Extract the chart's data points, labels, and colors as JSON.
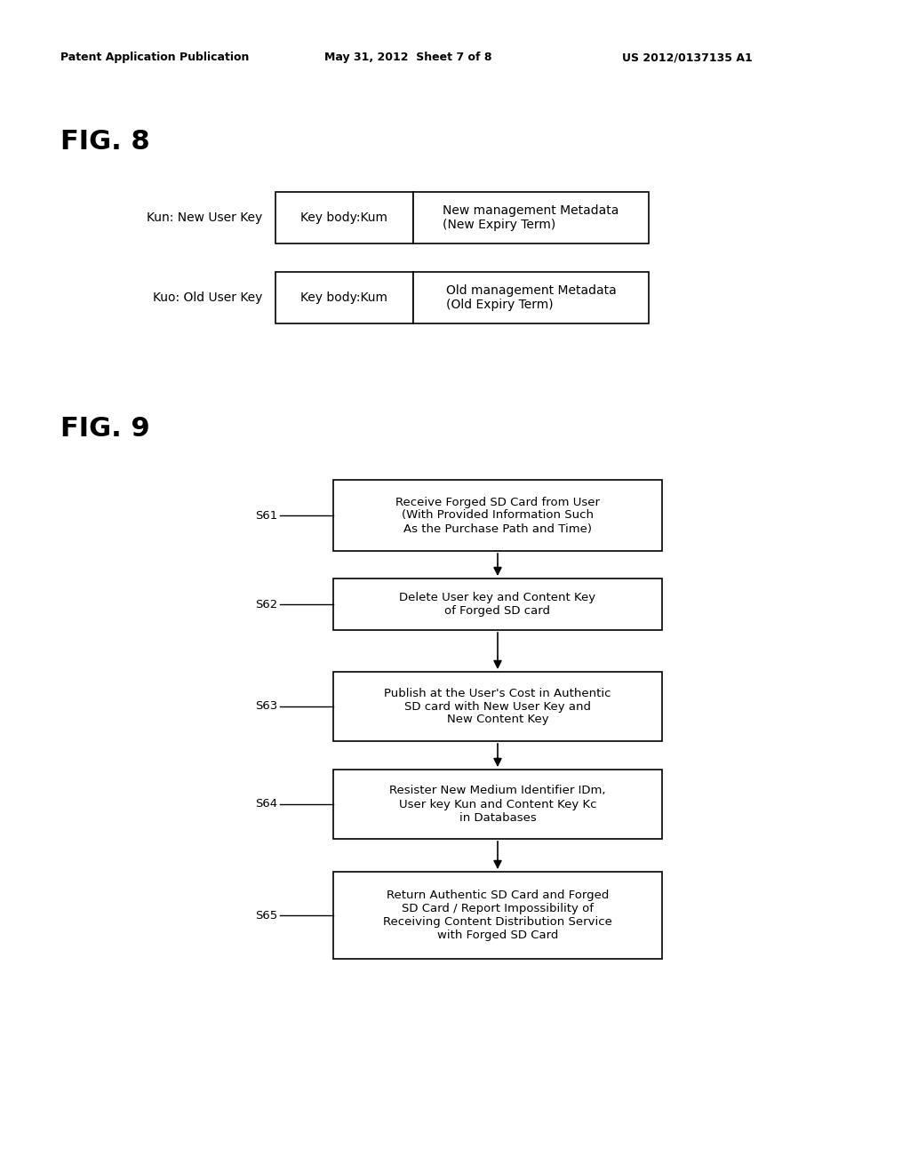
{
  "background_color": "#ffffff",
  "header_left": "Patent Application Publication",
  "header_center": "May 31, 2012  Sheet 7 of 8",
  "header_right": "US 2012/0137135 A1",
  "fig8_title": "FIG. 8",
  "fig8_row1_label": "Kun: New User Key",
  "fig8_row1_cell1": "Key body:Kum",
  "fig8_row1_cell2": "New management Metadata\n(New Expiry Term)",
  "fig8_row2_label": "Kuo: Old User Key",
  "fig8_row2_cell1": "Key body:Kum",
  "fig8_row2_cell2": "Old management Metadata\n(Old Expiry Term)",
  "fig9_title": "FIG. 9",
  "flowchart_steps": [
    {
      "label": "S61",
      "text": "Receive Forged SD Card from User\n(With Provided Information Such\nAs the Purchase Path and Time)"
    },
    {
      "label": "S62",
      "text": "Delete User key and Content Key\nof Forged SD card"
    },
    {
      "label": "S63",
      "text": "Publish at the User's Cost in Authentic\nSD card with New User Key and\nNew Content Key"
    },
    {
      "label": "S64",
      "text": "Resister New Medium Identifier IDm,\nUser key Kun and Content Key Kc\nin Databases"
    },
    {
      "label": "S65",
      "text": "Return Authentic SD Card and Forged\nSD Card / Report Impossibility of\nReceiving Content Distribution Service\nwith Forged SD Card"
    }
  ]
}
